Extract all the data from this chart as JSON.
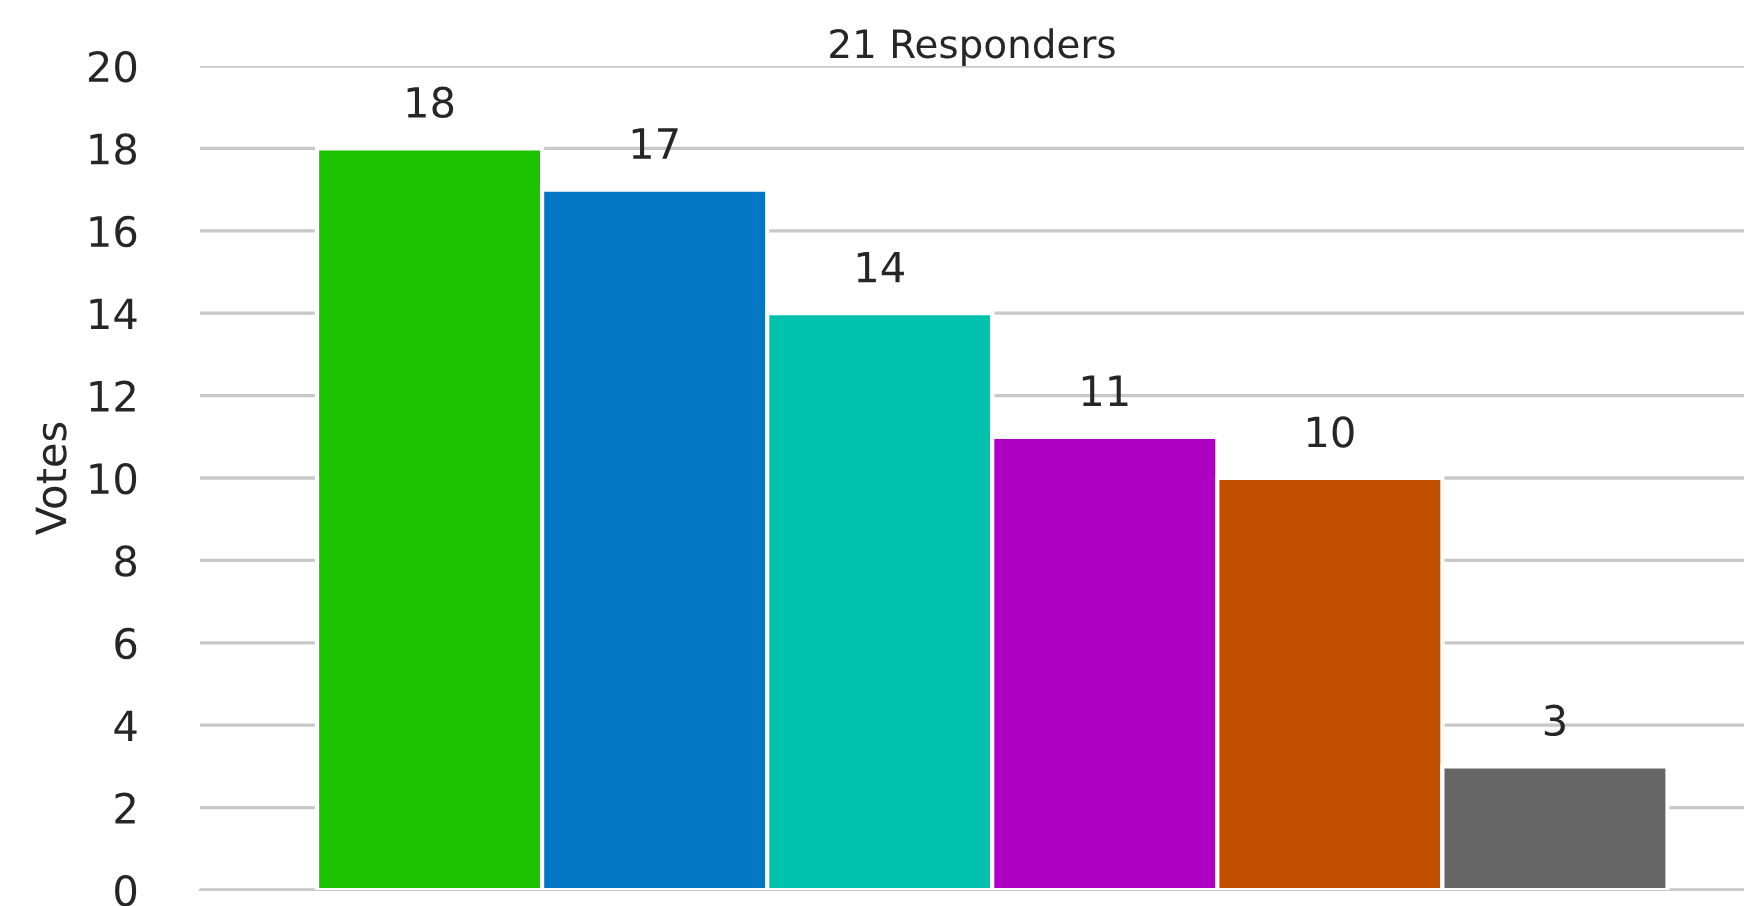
{
  "chart_data": {
    "type": "bar",
    "title": "21 Responders",
    "ylabel": "Votes",
    "categories": [
      null,
      null,
      null,
      null,
      null,
      null
    ],
    "values": [
      18,
      17,
      14,
      11,
      10,
      3
    ],
    "colors": [
      "#1dc200",
      "#0477c4",
      "#00c2ad",
      "#ad00c2",
      "#c24e00",
      "#666666"
    ],
    "ylim": [
      0,
      20
    ],
    "yticks": [
      0,
      2,
      4,
      6,
      8,
      10,
      12,
      14,
      16,
      18,
      20
    ],
    "grid": "y",
    "data_labels": true
  }
}
